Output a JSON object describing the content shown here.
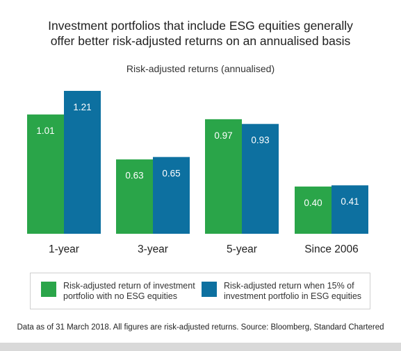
{
  "title_lines": [
    "Investment portfolios that include ESG equities generally",
    "offer better risk-adjusted returns on an annualised basis"
  ],
  "subtitle": "Risk-adjusted returns (annualised)",
  "footnote": "Data as of 31 March 2018. All figures are risk-adjusted returns. Source: Bloomberg, Standard Chartered",
  "colors": {
    "no_esg": "#2aa549",
    "with_esg": "#0d70a0"
  },
  "chart_data": {
    "type": "bar",
    "categories": [
      "1-year",
      "3-year",
      "5-year",
      "Since 2006"
    ],
    "series": [
      {
        "name": "Risk-adjusted return of investment\nportfolio with no ESG equities",
        "values": [
          1.01,
          0.63,
          0.97,
          0.4
        ],
        "labels": [
          "1.01",
          "0.63",
          "0.97",
          "0.40"
        ]
      },
      {
        "name": "Risk-adjusted return when 15% of\ninvestment portfolio in ESG equities",
        "values": [
          1.21,
          0.65,
          0.93,
          0.41
        ],
        "labels": [
          "1.21",
          "0.65",
          "0.93",
          "0.41"
        ]
      }
    ],
    "title": "Investment portfolios that include ESG equities generally offer better risk-adjusted returns on an annualised basis",
    "subtitle": "Risk-adjusted returns (annualised)",
    "xlabel": "",
    "ylabel": "",
    "ylim": [
      0,
      1.21
    ],
    "grid": false,
    "legend": "bottom"
  }
}
